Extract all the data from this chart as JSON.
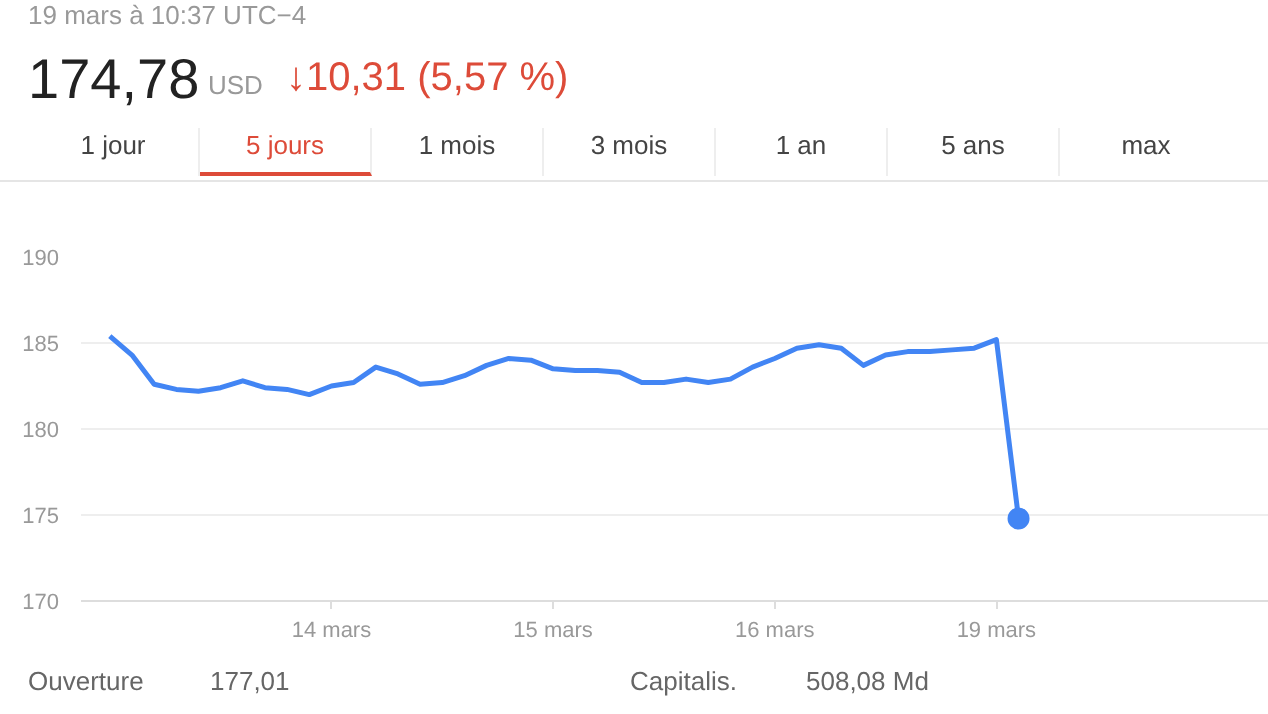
{
  "chart_data": {
    "type": "line",
    "subtitle": "19 mars à 10:37 UTC−4",
    "title": "174,78",
    "annotations": [
      "USD",
      "↓10,31 (5,57 %)",
      "1 jour",
      "5 jours",
      "1 mois",
      "3 mois",
      "1 an",
      "5 ans",
      "max",
      "Ouverture",
      "177,01",
      "Capitalis.",
      "508,08 Md"
    ],
    "categories": [
      null,
      null,
      null,
      null,
      null,
      null,
      null,
      null,
      null,
      null,
      null,
      "14 mars",
      null,
      null,
      null,
      null,
      null,
      null,
      null,
      null,
      null,
      "15 mars",
      null,
      null,
      null,
      null,
      null,
      null,
      null,
      null,
      null,
      "16 mars",
      null,
      null,
      null,
      null,
      null,
      null,
      null,
      null,
      null,
      "19 mars",
      null,
      null,
      null,
      null,
      null,
      null,
      null,
      null,
      null,
      null,
      null,
      null
    ],
    "series": [
      {
        "color": "#4285f4",
        "values": [
          null,
          185.4,
          184.3,
          182.6,
          182.3,
          182.2,
          182.4,
          182.8,
          182.4,
          182.3,
          182.0,
          182.5,
          182.7,
          183.6,
          183.2,
          182.6,
          182.7,
          183.1,
          183.7,
          184.1,
          184.0,
          183.5,
          183.4,
          183.4,
          183.3,
          182.7,
          182.7,
          182.9,
          182.7,
          182.9,
          183.6,
          184.1,
          184.7,
          184.9,
          184.7,
          183.7,
          184.3,
          184.5,
          184.5,
          184.6,
          184.7,
          185.2,
          174.8,
          null,
          null,
          null,
          null,
          null,
          null,
          null,
          null,
          null,
          null,
          null
        ]
      },
      {
        "type": "scatter",
        "color": "#4285f4",
        "marker": "circle",
        "values": [
          null,
          null,
          null,
          null,
          null,
          null,
          null,
          null,
          null,
          null,
          null,
          null,
          null,
          null,
          null,
          null,
          null,
          null,
          null,
          null,
          null,
          null,
          null,
          null,
          null,
          null,
          null,
          null,
          null,
          null,
          null,
          null,
          null,
          null,
          null,
          null,
          null,
          null,
          null,
          null,
          null,
          null,
          174.8,
          null,
          null,
          null,
          null,
          null,
          null,
          null,
          null,
          null,
          null,
          null
        ]
      }
    ],
    "ylim": [
      170,
      190
    ],
    "yticks": [
      170,
      175,
      180,
      185,
      190
    ],
    "grid": "y"
  }
}
